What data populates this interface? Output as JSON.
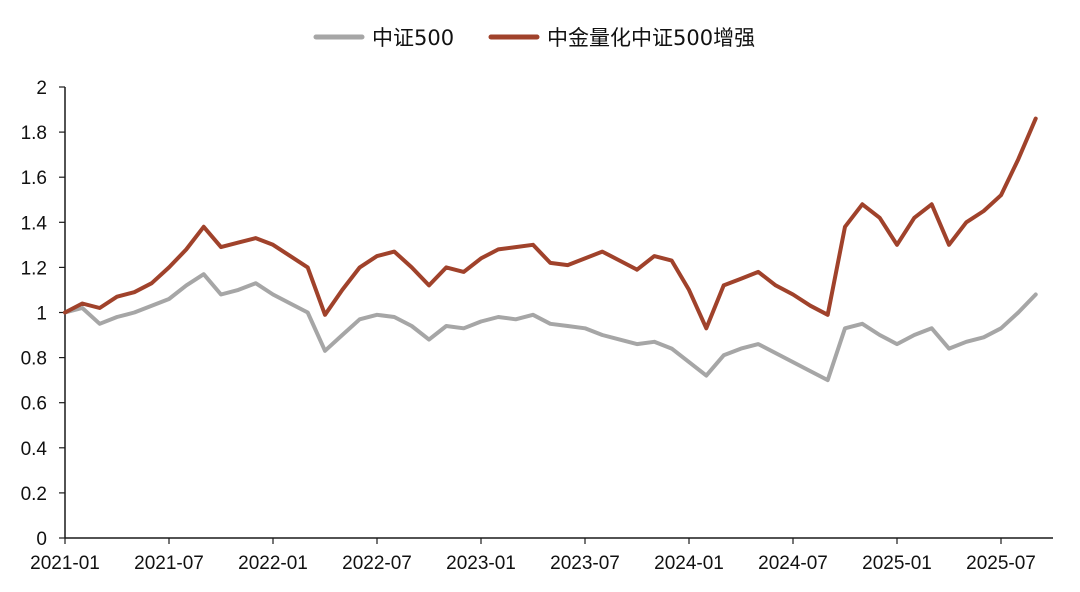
{
  "chart_data": {
    "type": "line",
    "title": "",
    "xlabel": "",
    "ylabel": "",
    "ylim": [
      0,
      2
    ],
    "y_ticks": [
      "0",
      "0.2",
      "0.4",
      "0.6",
      "0.8",
      "1",
      "1.2",
      "1.4",
      "1.6",
      "1.8",
      "2"
    ],
    "x_ticks": [
      "2021-01",
      "2021-07",
      "2022-01",
      "2022-07",
      "2023-01",
      "2023-07",
      "2024-01",
      "2024-07",
      "2025-01",
      "2025-07"
    ],
    "grid": false,
    "legend_position": "top-center",
    "series": [
      {
        "name": "中证500",
        "color": "#a6a6a6",
        "points": [
          [
            "2021-01",
            1.0
          ],
          [
            "2021-02",
            1.02
          ],
          [
            "2021-03",
            0.95
          ],
          [
            "2021-04",
            0.98
          ],
          [
            "2021-05",
            1.0
          ],
          [
            "2021-06",
            1.03
          ],
          [
            "2021-07",
            1.06
          ],
          [
            "2021-08",
            1.12
          ],
          [
            "2021-09",
            1.17
          ],
          [
            "2021-10",
            1.08
          ],
          [
            "2021-11",
            1.1
          ],
          [
            "2021-12",
            1.13
          ],
          [
            "2022-01",
            1.08
          ],
          [
            "2022-02",
            1.04
          ],
          [
            "2022-03",
            1.0
          ],
          [
            "2022-04",
            0.83
          ],
          [
            "2022-05",
            0.9
          ],
          [
            "2022-06",
            0.97
          ],
          [
            "2022-07",
            0.99
          ],
          [
            "2022-08",
            0.98
          ],
          [
            "2022-09",
            0.94
          ],
          [
            "2022-10",
            0.88
          ],
          [
            "2022-11",
            0.94
          ],
          [
            "2022-12",
            0.93
          ],
          [
            "2023-01",
            0.96
          ],
          [
            "2023-02",
            0.98
          ],
          [
            "2023-03",
            0.97
          ],
          [
            "2023-04",
            0.99
          ],
          [
            "2023-05",
            0.95
          ],
          [
            "2023-06",
            0.94
          ],
          [
            "2023-07",
            0.93
          ],
          [
            "2023-08",
            0.9
          ],
          [
            "2023-09",
            0.88
          ],
          [
            "2023-10",
            0.86
          ],
          [
            "2023-11",
            0.87
          ],
          [
            "2023-12",
            0.84
          ],
          [
            "2024-01",
            0.78
          ],
          [
            "2024-02",
            0.72
          ],
          [
            "2024-03",
            0.81
          ],
          [
            "2024-04",
            0.84
          ],
          [
            "2024-05",
            0.86
          ],
          [
            "2024-06",
            0.82
          ],
          [
            "2024-07",
            0.78
          ],
          [
            "2024-08",
            0.74
          ],
          [
            "2024-09",
            0.7
          ],
          [
            "2024-10",
            0.93
          ],
          [
            "2024-11",
            0.95
          ],
          [
            "2024-12",
            0.9
          ],
          [
            "2025-01",
            0.86
          ],
          [
            "2025-02",
            0.9
          ],
          [
            "2025-03",
            0.93
          ],
          [
            "2025-04",
            0.84
          ],
          [
            "2025-05",
            0.87
          ],
          [
            "2025-06",
            0.89
          ],
          [
            "2025-07",
            0.93
          ],
          [
            "2025-08",
            1.0
          ],
          [
            "2025-09",
            1.08
          ]
        ]
      },
      {
        "name": "中金量化中证500增强",
        "color": "#a0422b",
        "points": [
          [
            "2021-01",
            1.0
          ],
          [
            "2021-02",
            1.04
          ],
          [
            "2021-03",
            1.02
          ],
          [
            "2021-04",
            1.07
          ],
          [
            "2021-05",
            1.09
          ],
          [
            "2021-06",
            1.13
          ],
          [
            "2021-07",
            1.2
          ],
          [
            "2021-08",
            1.28
          ],
          [
            "2021-09",
            1.38
          ],
          [
            "2021-10",
            1.29
          ],
          [
            "2021-11",
            1.31
          ],
          [
            "2021-12",
            1.33
          ],
          [
            "2022-01",
            1.3
          ],
          [
            "2022-02",
            1.25
          ],
          [
            "2022-03",
            1.2
          ],
          [
            "2022-04",
            0.99
          ],
          [
            "2022-05",
            1.1
          ],
          [
            "2022-06",
            1.2
          ],
          [
            "2022-07",
            1.25
          ],
          [
            "2022-08",
            1.27
          ],
          [
            "2022-09",
            1.2
          ],
          [
            "2022-10",
            1.12
          ],
          [
            "2022-11",
            1.2
          ],
          [
            "2022-12",
            1.18
          ],
          [
            "2023-01",
            1.24
          ],
          [
            "2023-02",
            1.28
          ],
          [
            "2023-03",
            1.29
          ],
          [
            "2023-04",
            1.3
          ],
          [
            "2023-05",
            1.22
          ],
          [
            "2023-06",
            1.21
          ],
          [
            "2023-07",
            1.24
          ],
          [
            "2023-08",
            1.27
          ],
          [
            "2023-09",
            1.23
          ],
          [
            "2023-10",
            1.19
          ],
          [
            "2023-11",
            1.25
          ],
          [
            "2023-12",
            1.23
          ],
          [
            "2024-01",
            1.1
          ],
          [
            "2024-02",
            0.93
          ],
          [
            "2024-03",
            1.12
          ],
          [
            "2024-04",
            1.15
          ],
          [
            "2024-05",
            1.18
          ],
          [
            "2024-06",
            1.12
          ],
          [
            "2024-07",
            1.08
          ],
          [
            "2024-08",
            1.03
          ],
          [
            "2024-09",
            0.99
          ],
          [
            "2024-10",
            1.38
          ],
          [
            "2024-11",
            1.48
          ],
          [
            "2024-12",
            1.42
          ],
          [
            "2025-01",
            1.3
          ],
          [
            "2025-02",
            1.42
          ],
          [
            "2025-03",
            1.48
          ],
          [
            "2025-04",
            1.3
          ],
          [
            "2025-05",
            1.4
          ],
          [
            "2025-06",
            1.45
          ],
          [
            "2025-07",
            1.52
          ],
          [
            "2025-08",
            1.68
          ],
          [
            "2025-09",
            1.86
          ]
        ]
      }
    ]
  }
}
